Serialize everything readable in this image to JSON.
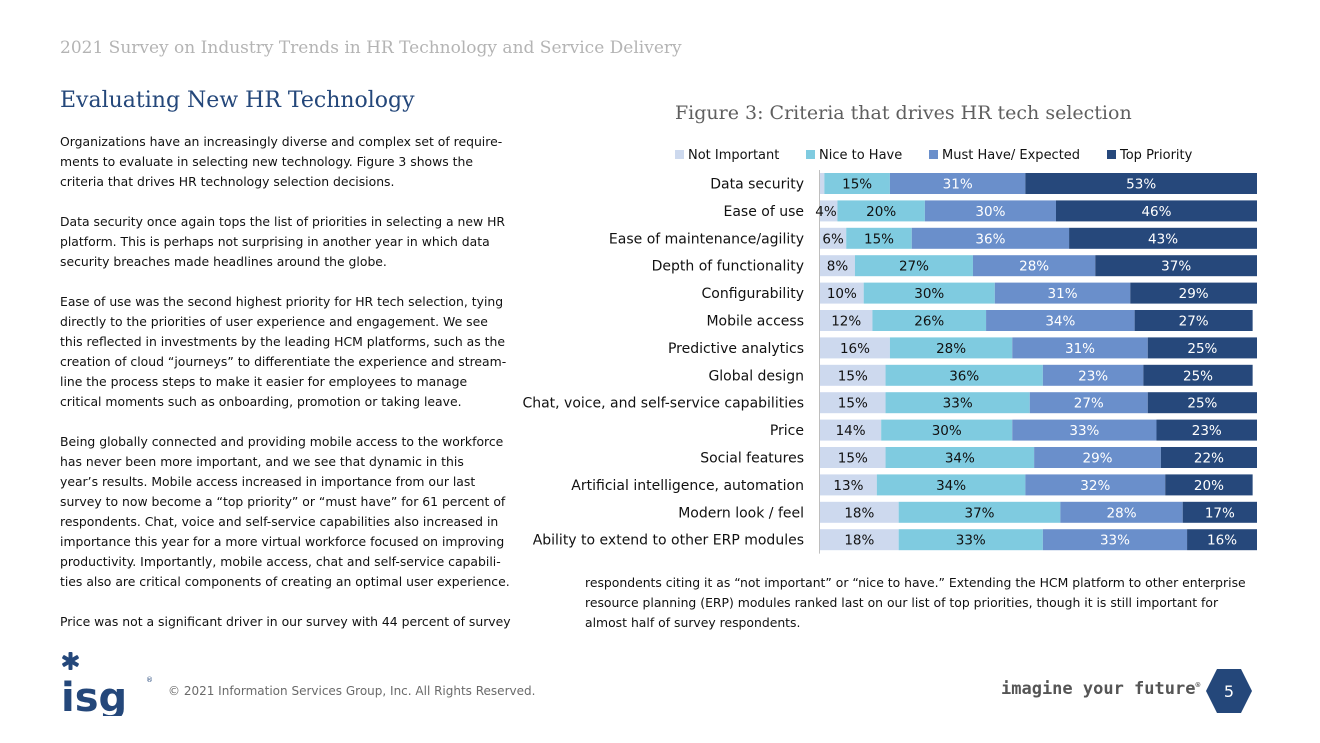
{
  "header": {
    "title": "2021 Survey on Industry Trends in HR Technology and Service Delivery"
  },
  "section": {
    "title": "Evaluating New HR Technology"
  },
  "body": {
    "paragraphs": [
      "Organizations have an increasingly diverse and complex set of require-\nments to evaluate in selecting new technology. Figure 3 shows the\ncriteria that drives HR technology selection decisions.",
      "Data security once again tops the list of priorities in selecting a new HR\nplatform. This is perhaps not surprising in another year in which data\nsecurity breaches made headlines around the globe.",
      "Ease of use was the second highest priority for HR tech selection, tying\ndirectly to the priorities of user experience and engagement. We see\nthis reflected in investments by the leading HCM platforms, such as the\ncreation of cloud “journeys” to differentiate the experience and stream-\nline the process steps to make it easier for employees to manage\ncritical moments such as onboarding, promotion or taking leave.",
      "Being globally connected and providing mobile access to the workforce\nhas never been more important, and we see that dynamic in this\nyear’s results. Mobile access increased in importance from our last\nsurvey to now become a “top priority” or “must have” for 61 percent of\nrespondents. Chat, voice and self-service capabilities also increased in\nimportance this year for a more virtual workforce focused on improving\nproductivity. Importantly, mobile access, chat and self-service capabili-\nties also are critical components of creating an optimal user experience.",
      "Price was not a significant driver in our survey with 44 percent of survey"
    ],
    "continuation": "respondents citing it as “not important” or “nice to have.” Extending the HCM platform to other enterprise\nresource planning (ERP) modules ranked last on our list of top priorities, though it is still important for\nalmost half of survey respondents."
  },
  "figure": {
    "title": "Figure 3: Criteria that drives HR tech selection"
  },
  "chart_data": {
    "type": "bar",
    "orientation": "horizontal",
    "stacked": "100%",
    "categories": [
      "Data security",
      "Ease of use",
      "Ease of maintenance/agility",
      "Depth of functionality",
      "Configurability",
      "Mobile access",
      "Predictive analytics",
      "Global design",
      "Chat, voice, and self-service capabilities",
      "Price",
      "Social features",
      "Artificial intelligence, automation",
      "Modern look / feel",
      "Ability to extend to other ERP modules"
    ],
    "series": [
      {
        "name": "Not Important",
        "color": "#cdd9ee",
        "values": [
          1,
          4,
          6,
          8,
          10,
          12,
          16,
          15,
          15,
          14,
          15,
          13,
          18,
          18
        ],
        "labels": [
          "",
          "4%",
          "6%",
          "8%",
          "10%",
          "12%",
          "16%",
          "15%",
          "15%",
          "14%",
          "15%",
          "13%",
          "18%",
          "18%"
        ]
      },
      {
        "name": "Nice to Have",
        "color": "#7fcbe0",
        "values": [
          15,
          20,
          15,
          27,
          30,
          26,
          28,
          36,
          33,
          30,
          34,
          34,
          37,
          33
        ],
        "labels": [
          "15%",
          "20%",
          "15%",
          "27%",
          "30%",
          "26%",
          "28%",
          "36%",
          "33%",
          "30%",
          "34%",
          "34%",
          "37%",
          "33%"
        ]
      },
      {
        "name": "Must Have/ Expected",
        "color": "#6a8fcb",
        "values": [
          31,
          30,
          36,
          28,
          31,
          34,
          31,
          23,
          27,
          33,
          29,
          32,
          28,
          33
        ],
        "labels": [
          "31%",
          "30%",
          "36%",
          "28%",
          "31%",
          "34%",
          "31%",
          "23%",
          "27%",
          "33%",
          "29%",
          "32%",
          "28%",
          "33%"
        ]
      },
      {
        "name": "Top Priority",
        "color": "#26487b",
        "values": [
          53,
          46,
          43,
          37,
          29,
          27,
          25,
          25,
          25,
          23,
          22,
          20,
          17,
          16
        ],
        "labels": [
          "53%",
          "46%",
          "43%",
          "37%",
          "29%",
          "27%",
          "25%",
          "25%",
          "25%",
          "23%",
          "22%",
          "20%",
          "17%",
          "16%"
        ]
      }
    ],
    "label_colors": [
      "#111111",
      "#111111",
      "#ffffff",
      "#ffffff"
    ],
    "legend": "top",
    "grid": false
  },
  "footer": {
    "copyright": "© 2021 Information Services Group, Inc. All Rights Reserved.",
    "logo_text": "isg",
    "tagline": "imagine your future",
    "tagline_mark": "®",
    "page_number": "5",
    "brand_color": "#24477a"
  }
}
